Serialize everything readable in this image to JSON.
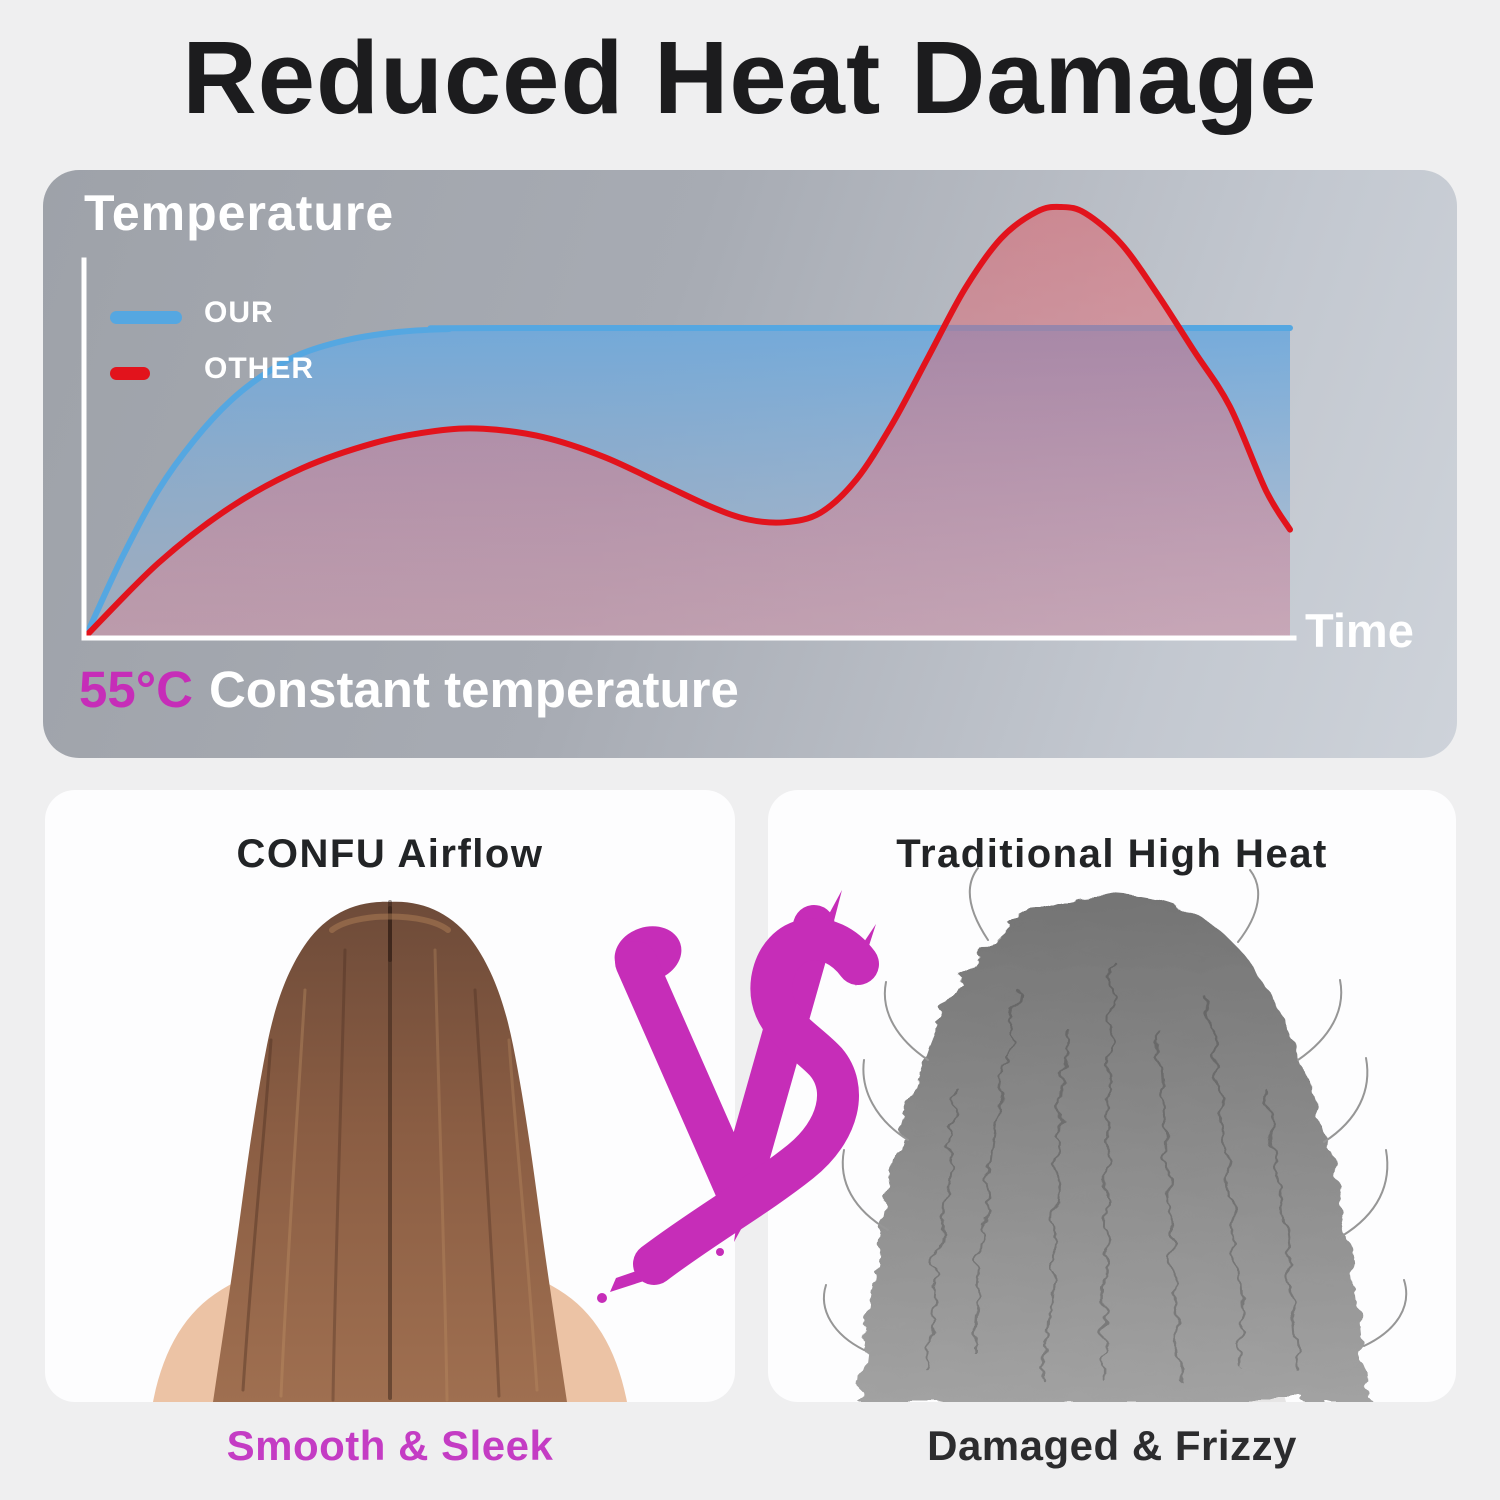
{
  "page": {
    "title": "Reduced Heat Damage",
    "background": "#efeff0"
  },
  "colors": {
    "accent_magenta": "#c62db8",
    "caption_magenta": "#c43cc4",
    "our_blue": "#55a7e1",
    "other_red": "#e2131c",
    "panel_text": "#ffffff",
    "title_text": "#1c1c1e"
  },
  "temperature_panel": {
    "y_axis_label": "Temperature",
    "x_axis_label": "Time",
    "legend": [
      {
        "label": "OUR",
        "series": "our"
      },
      {
        "label": "OTHER",
        "series": "other"
      }
    ],
    "footnote": {
      "value": "55°C",
      "text": "Constant temperature"
    }
  },
  "chart_data": {
    "type": "area",
    "title": "Temperature",
    "xlabel": "Time",
    "ylabel": "Temperature (°C)",
    "x_range": [
      0,
      100
    ],
    "y_range": [
      0,
      80
    ],
    "grid": false,
    "legend_position": "top-left",
    "annotation": "55°C Constant temperature",
    "series": [
      {
        "name": "OUR",
        "color": "#55a7e1",
        "behavior": "rises quickly then holds constant 55°C plateau",
        "x": [
          0,
          3,
          6,
          9,
          12,
          15,
          18,
          22,
          26,
          30,
          35,
          100
        ],
        "y": [
          0,
          14,
          26,
          35,
          42,
          47,
          50.5,
          53,
          54.3,
          54.8,
          55,
          55
        ]
      },
      {
        "name": "OTHER",
        "color": "#e2131c",
        "behavior": "fluctuates: hump, dip, overshoot peak ~77°C, falls",
        "x": [
          0,
          6,
          12,
          18,
          24,
          29,
          33,
          38,
          43,
          48,
          52,
          55,
          58,
          61,
          64,
          67,
          70,
          73,
          76,
          79,
          81,
          83,
          86,
          89,
          92,
          95,
          98,
          100
        ],
        "y": [
          0,
          13,
          23,
          30,
          34.5,
          36.6,
          37,
          35.5,
          32,
          27,
          23,
          20.8,
          20.3,
          22,
          28,
          38,
          50,
          62,
          71,
          75.8,
          76.6,
          75.5,
          70,
          61,
          51,
          41,
          26,
          19
        ]
      }
    ]
  },
  "comparison": {
    "vs_label": "VS",
    "left": {
      "heading": "CONFU Airflow",
      "caption": "Smooth & Sleek",
      "image_alt": "back view of woman with smooth sleek brown hair"
    },
    "right": {
      "heading": "Traditional High Heat",
      "caption": "Damaged & Frizzy",
      "image_alt": "back view of woman with frizzy damaged hair (grayscale)"
    }
  }
}
